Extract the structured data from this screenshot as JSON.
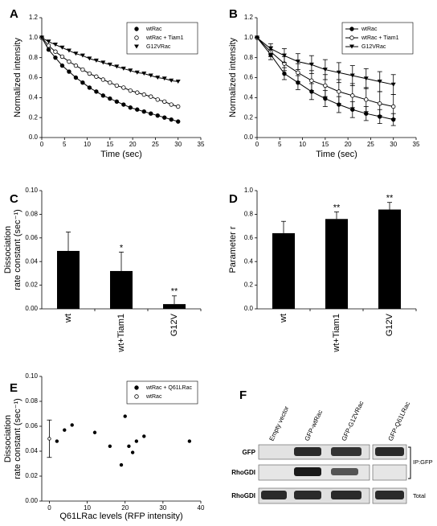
{
  "chart_data": [
    {
      "type": "line",
      "panel": "A",
      "xlabel": "Time (sec)",
      "ylabel": [
        "Normalized intensity"
      ],
      "x": [
        0,
        1.5,
        3,
        4.5,
        6,
        7.5,
        9,
        10.5,
        12,
        13.5,
        15,
        16.5,
        18,
        19.5,
        21,
        22.5,
        24,
        25.5,
        27,
        28.5,
        30
      ],
      "series": [
        {
          "name": "wtRac",
          "color": "#000000",
          "marker": "circle",
          "values": [
            1.0,
            0.88,
            0.8,
            0.72,
            0.66,
            0.6,
            0.55,
            0.5,
            0.46,
            0.42,
            0.39,
            0.36,
            0.33,
            0.3,
            0.28,
            0.26,
            0.24,
            0.22,
            0.2,
            0.18,
            0.16
          ]
        },
        {
          "name": "wtRac + Tiam1",
          "color": "#000000",
          "marker": "open-circle",
          "values": [
            1.0,
            0.92,
            0.86,
            0.81,
            0.76,
            0.72,
            0.68,
            0.64,
            0.61,
            0.58,
            0.55,
            0.52,
            0.5,
            0.47,
            0.45,
            0.43,
            0.41,
            0.38,
            0.36,
            0.33,
            0.31
          ]
        },
        {
          "name": "G12VRac",
          "color": "#000000",
          "marker": "triangle",
          "values": [
            1.0,
            0.96,
            0.93,
            0.9,
            0.87,
            0.84,
            0.82,
            0.79,
            0.77,
            0.75,
            0.73,
            0.71,
            0.69,
            0.67,
            0.65,
            0.64,
            0.62,
            0.6,
            0.59,
            0.57,
            0.56
          ]
        }
      ],
      "xlim": [
        0,
        35
      ],
      "xticks": [
        0,
        5,
        10,
        15,
        20,
        25,
        30,
        35
      ],
      "ylim": [
        0,
        1.2
      ],
      "yticks": [
        {
          "value": 0,
          "label": "0.0"
        },
        0.2,
        0.4,
        0.6,
        0.8,
        {
          "value": 1,
          "label": "1.0"
        },
        1.2
      ],
      "legend": "upper right"
    },
    {
      "type": "line",
      "panel": "B",
      "xlabel": "Time (sec)",
      "ylabel": [
        "Normalized intensity"
      ],
      "x": [
        0,
        3,
        6,
        9,
        12,
        15,
        18,
        21,
        24,
        27,
        30
      ],
      "series": [
        {
          "name": "wtRac",
          "color": "#000000",
          "marker": "circle",
          "values": [
            1.0,
            0.83,
            0.64,
            0.55,
            0.46,
            0.39,
            0.33,
            0.28,
            0.24,
            0.21,
            0.18
          ],
          "errors": [
            0,
            0.05,
            0.06,
            0.07,
            0.08,
            0.08,
            0.08,
            0.08,
            0.07,
            0.07,
            0.06
          ]
        },
        {
          "name": "wtRac + Tiam1",
          "color": "#000000",
          "marker": "open-circle",
          "values": [
            1.0,
            0.86,
            0.74,
            0.65,
            0.57,
            0.52,
            0.46,
            0.42,
            0.38,
            0.34,
            0.31
          ],
          "errors": [
            0,
            0.05,
            0.07,
            0.09,
            0.1,
            0.11,
            0.12,
            0.12,
            0.12,
            0.12,
            0.12
          ]
        },
        {
          "name": "G12VRac",
          "color": "#000000",
          "marker": "triangle",
          "values": [
            1.0,
            0.89,
            0.82,
            0.76,
            0.73,
            0.68,
            0.65,
            0.62,
            0.59,
            0.56,
            0.53
          ],
          "errors": [
            0,
            0.05,
            0.07,
            0.08,
            0.09,
            0.1,
            0.1,
            0.1,
            0.1,
            0.1,
            0.1
          ]
        }
      ],
      "xlim": [
        0,
        35
      ],
      "xticks": [
        0,
        5,
        10,
        15,
        20,
        25,
        30,
        35
      ],
      "ylim": [
        0,
        1.2
      ],
      "yticks": [
        {
          "value": 0,
          "label": "0.0"
        },
        0.2,
        0.4,
        0.6,
        0.8,
        {
          "value": 1,
          "label": "1.0"
        },
        1.2
      ],
      "legend": "upper right"
    },
    {
      "type": "bar",
      "panel": "C",
      "ylabel": [
        "Dissociation",
        "rate constant (sec⁻¹)"
      ],
      "categories": [
        "wt",
        "wt+Tiam1",
        "G12V"
      ],
      "values": [
        0.049,
        0.032,
        0.004
      ],
      "errors": [
        0.016,
        0.016,
        0.007
      ],
      "color": "#000000",
      "annotations": [
        {
          "x": "wt+Tiam1",
          "text": "*"
        },
        {
          "x": "G12V",
          "text": "**"
        }
      ],
      "ylim": [
        0,
        0.1
      ],
      "yticks": [
        {
          "value": 0,
          "label": "0.00"
        },
        {
          "value": 0.02,
          "label": "0.02"
        },
        {
          "value": 0.04,
          "label": "0.04"
        },
        {
          "value": 0.06,
          "label": "0.06"
        },
        {
          "value": 0.08,
          "label": "0.08"
        },
        {
          "value": 0.1,
          "label": "0.10"
        }
      ]
    },
    {
      "type": "bar",
      "panel": "D",
      "ylabel": [
        "Parameter r"
      ],
      "categories": [
        "wt",
        "wt+Tiam1",
        "G12V"
      ],
      "values": [
        0.64,
        0.76,
        0.84
      ],
      "errors": [
        0.1,
        0.06,
        0.06
      ],
      "color": "#000000",
      "annotations": [
        {
          "x": "wt+Tiam1",
          "text": "**"
        },
        {
          "x": "G12V",
          "text": "**"
        }
      ],
      "ylim": [
        0,
        1
      ],
      "yticks": [
        {
          "value": 0,
          "label": "0.0"
        },
        0.2,
        0.4,
        0.6,
        0.8,
        {
          "value": 1,
          "label": "1.0"
        }
      ]
    },
    {
      "type": "scatter",
      "panel": "E",
      "xlabel": "Q61LRac levels (RFP intensity)",
      "ylabel": [
        "Dissociation",
        "rate constant (sec⁻¹)"
      ],
      "series": [
        {
          "name": "wtRac + Q61LRac",
          "color": "#000000",
          "marker": "circle",
          "x": [
            2,
            4,
            6,
            12,
            16,
            19,
            20,
            21,
            22,
            23,
            25,
            37
          ],
          "values": [
            0.048,
            0.057,
            0.061,
            0.055,
            0.044,
            0.029,
            0.068,
            0.044,
            0.039,
            0.048,
            0.052,
            0.048
          ]
        },
        {
          "name": "wtRac",
          "color": "#000000",
          "marker": "open-circle",
          "x": [
            0
          ],
          "values": [
            0.05
          ],
          "errors": [
            0.015
          ]
        }
      ],
      "xlim": [
        -2,
        40
      ],
      "xticks": [
        0,
        10,
        20,
        30,
        40
      ],
      "ylim": [
        0,
        0.1
      ],
      "yticks": [
        {
          "value": 0,
          "label": "0.00"
        },
        {
          "value": 0.02,
          "label": "0.02"
        },
        {
          "value": 0.04,
          "label": "0.04"
        },
        {
          "value": 0.06,
          "label": "0.06"
        },
        {
          "value": 0.08,
          "label": "0.08"
        },
        {
          "value": 0.1,
          "label": "0.10"
        }
      ],
      "legend": "upper right"
    }
  ],
  "blot": {
    "panel": "F",
    "lanes": [
      "Empty vector",
      "GFP-wtRac",
      "GFP-G12VRac",
      "GFP-Q61LRac"
    ],
    "rows": [
      "GFP",
      "RhoGDI",
      "RhoGDI"
    ],
    "groups": [
      "IP:GFP",
      "Total"
    ]
  }
}
